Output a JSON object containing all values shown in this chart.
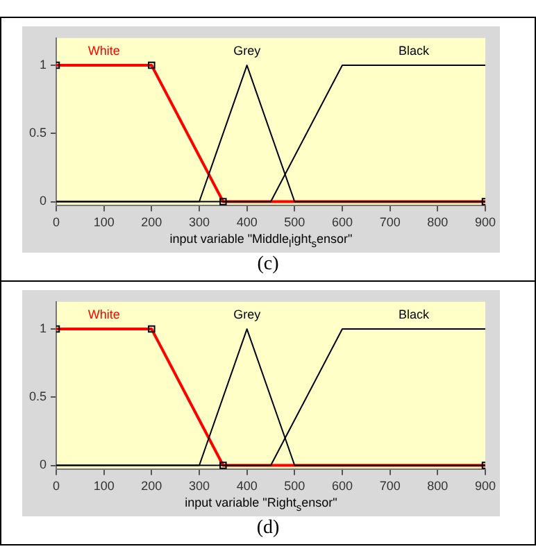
{
  "chart_data": [
    {
      "type": "line",
      "xlabel": "input variable \"Middle$_{l}$ight$_{s}$ensor\"",
      "annotations": [
        "(c)"
      ],
      "xlim": [
        0,
        900
      ],
      "xticks": [
        0,
        100,
        200,
        300,
        400,
        500,
        600,
        700,
        800,
        900
      ],
      "ylim": [
        -0.03,
        1.2
      ],
      "yticks": [
        0,
        0.5,
        1
      ],
      "grid": false,
      "legend": false,
      "series": [
        {
          "name": "Grey",
          "color": "#000000",
          "x": [
            0,
            300,
            400,
            500,
            900
          ],
          "values": [
            0,
            0,
            1,
            0,
            0
          ],
          "marker": "none"
        },
        {
          "name": "Black",
          "color": "#000000",
          "x": [
            0,
            450,
            600,
            900
          ],
          "values": [
            0,
            0,
            1,
            1
          ],
          "marker": "none"
        },
        {
          "name": "White",
          "color": "#ff0000",
          "x": [
            0,
            200,
            350,
            900
          ],
          "values": [
            1,
            1,
            0,
            0
          ],
          "marker": "square"
        }
      ]
    },
    {
      "type": "line",
      "xlabel": "input variable \"Right$_{s}$ensor\"",
      "annotations": [
        "(d)"
      ],
      "xlim": [
        0,
        900
      ],
      "xticks": [
        0,
        100,
        200,
        300,
        400,
        500,
        600,
        700,
        800,
        900
      ],
      "ylim": [
        -0.03,
        1.2
      ],
      "yticks": [
        0,
        0.5,
        1
      ],
      "grid": false,
      "legend": false,
      "series": [
        {
          "name": "Grey",
          "color": "#000000",
          "x": [
            0,
            300,
            400,
            500,
            900
          ],
          "values": [
            0,
            0,
            1,
            0,
            0
          ],
          "marker": "none"
        },
        {
          "name": "Black",
          "color": "#000000",
          "x": [
            0,
            450,
            600,
            900
          ],
          "values": [
            0,
            0,
            1,
            1
          ],
          "marker": "none"
        },
        {
          "name": "White",
          "color": "#ff0000",
          "x": [
            0,
            200,
            350,
            900
          ],
          "values": [
            1,
            1,
            0,
            0
          ],
          "marker": "square"
        }
      ]
    }
  ]
}
